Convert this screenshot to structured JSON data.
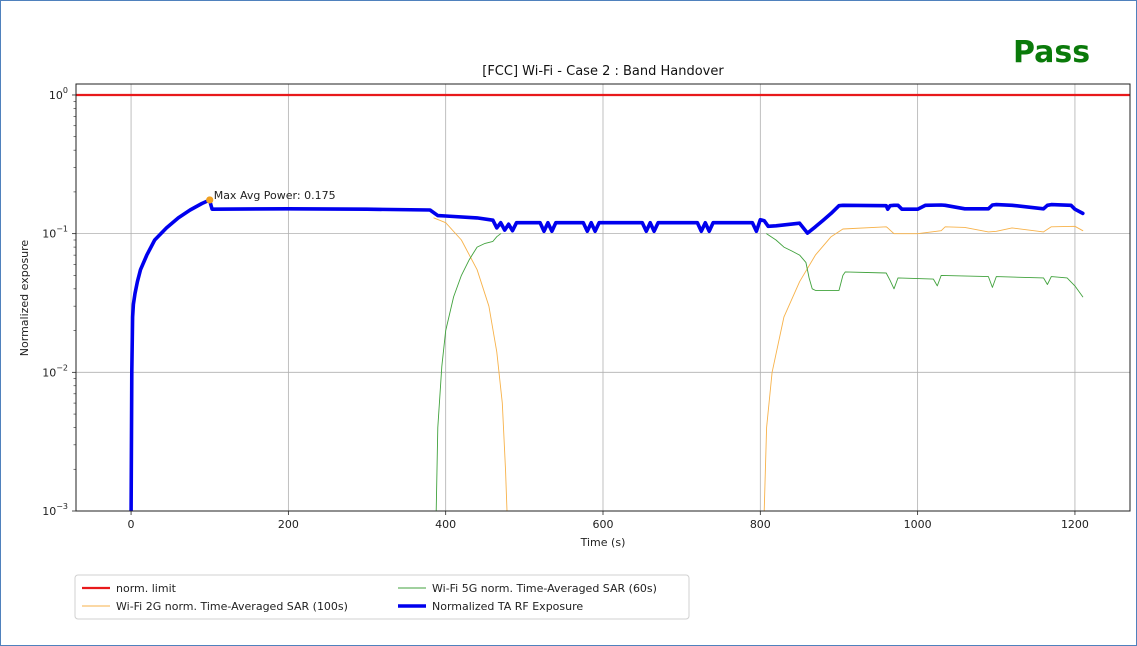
{
  "verdict": {
    "text": "Pass",
    "color": "#0a7a0a"
  },
  "chart_data": {
    "type": "line",
    "title": "[FCC] Wi-Fi - Case 2 : Band Handover",
    "xlabel": "Time (s)",
    "ylabel": "Normalized exposure",
    "xlim": [
      -70,
      1270
    ],
    "ylim": [
      0.001,
      1.2
    ],
    "yscale": "log",
    "grid": true,
    "x_ticks": [
      0,
      200,
      400,
      600,
      800,
      1000,
      1200
    ],
    "x_tick_labels": [
      "0",
      "200",
      "400",
      "600",
      "800",
      "1000",
      "1200"
    ],
    "y_ticks": [
      0.001,
      0.01,
      0.1,
      1
    ],
    "y_tick_labels": [
      {
        "base": "10",
        "exp": "−3"
      },
      {
        "base": "10",
        "exp": "−2"
      },
      {
        "base": "10",
        "exp": "−1"
      },
      {
        "base": "10",
        "exp": "0"
      }
    ],
    "legend_position": "below plot, left",
    "annotation": {
      "text": "Max Avg Power: 0.175",
      "x": 100,
      "y": 0.175,
      "color": "#f0a020"
    },
    "series": [
      {
        "name": "norm. limit",
        "color": "#e8191b",
        "x": [
          -70,
          1270
        ],
        "y": [
          1.0,
          1.0
        ]
      },
      {
        "name": "Wi-Fi 2G norm. Time-Averaged SAR (100s)",
        "color": "#f7b24a",
        "x": [
          385,
          400,
          420,
          440,
          455,
          465,
          472,
          476,
          478,
          null,
          805,
          808,
          815,
          830,
          850,
          870,
          890,
          905,
          960,
          962,
          970,
          1000,
          1030,
          1035,
          1060,
          1090,
          1100,
          1120,
          1160,
          1170,
          1200,
          1210
        ],
        "y": [
          0.13,
          0.12,
          0.09,
          0.055,
          0.03,
          0.014,
          0.006,
          0.002,
          0.001,
          null,
          0.001,
          0.004,
          0.01,
          0.025,
          0.045,
          0.07,
          0.095,
          0.108,
          0.112,
          0.11,
          0.1,
          0.1,
          0.105,
          0.112,
          0.111,
          0.103,
          0.104,
          0.11,
          0.103,
          0.112,
          0.113,
          0.105
        ]
      },
      {
        "name": "Wi-Fi 5G norm. Time-Averaged SAR (60s)",
        "color": "#41a23d",
        "x": [
          388,
          390,
          395,
          400,
          410,
          420,
          430,
          440,
          450,
          460,
          465,
          470,
          null,
          808,
          820,
          830,
          840,
          850,
          858,
          862,
          866,
          870,
          880,
          900,
          905,
          908,
          960,
          965,
          970,
          975,
          1020,
          1025,
          1030,
          1090,
          1095,
          1100,
          1160,
          1165,
          1170,
          1190,
          1200,
          1210
        ],
        "y": [
          0.001,
          0.004,
          0.011,
          0.02,
          0.035,
          0.05,
          0.065,
          0.08,
          0.085,
          0.088,
          0.095,
          0.1,
          null,
          0.1,
          0.09,
          0.08,
          0.075,
          0.07,
          0.062,
          0.048,
          0.04,
          0.039,
          0.039,
          0.039,
          0.05,
          0.053,
          0.052,
          0.046,
          0.04,
          0.048,
          0.047,
          0.042,
          0.05,
          0.049,
          0.041,
          0.049,
          0.048,
          0.043,
          0.049,
          0.048,
          0.042,
          0.035
        ]
      },
      {
        "name": "Normalized TA RF Exposure",
        "color": "#0000ee",
        "x": [
          0,
          1,
          2,
          3,
          5,
          8,
          12,
          20,
          30,
          45,
          60,
          75,
          90,
          100,
          101,
          103,
          200,
          300,
          380,
          390,
          400,
          440,
          460,
          465,
          470,
          475,
          480,
          485,
          490,
          500,
          510,
          520,
          525,
          530,
          535,
          540,
          575,
          580,
          585,
          590,
          595,
          620,
          650,
          655,
          660,
          665,
          670,
          690,
          720,
          725,
          730,
          735,
          740,
          760,
          790,
          795,
          800,
          805,
          810,
          820,
          850,
          860,
          870,
          880,
          890,
          900,
          905,
          960,
          962,
          965,
          970,
          975,
          980,
          1000,
          1010,
          1030,
          1035,
          1060,
          1090,
          1095,
          1100,
          1120,
          1160,
          1165,
          1170,
          1195,
          1200,
          1210
        ],
        "y": [
          0.001,
          0.01,
          0.025,
          0.031,
          0.037,
          0.045,
          0.055,
          0.07,
          0.09,
          0.11,
          0.13,
          0.148,
          0.165,
          0.175,
          0.165,
          0.15,
          0.151,
          0.15,
          0.148,
          0.135,
          0.134,
          0.13,
          0.125,
          0.11,
          0.12,
          0.106,
          0.117,
          0.105,
          0.12,
          0.12,
          0.12,
          0.12,
          0.104,
          0.12,
          0.104,
          0.12,
          0.12,
          0.104,
          0.12,
          0.104,
          0.12,
          0.12,
          0.12,
          0.104,
          0.12,
          0.104,
          0.12,
          0.12,
          0.12,
          0.104,
          0.12,
          0.104,
          0.12,
          0.12,
          0.12,
          0.104,
          0.126,
          0.124,
          0.113,
          0.114,
          0.119,
          0.101,
          0.112,
          0.125,
          0.14,
          0.159,
          0.16,
          0.159,
          0.15,
          0.159,
          0.16,
          0.16,
          0.15,
          0.15,
          0.16,
          0.161,
          0.16,
          0.151,
          0.151,
          0.161,
          0.162,
          0.16,
          0.151,
          0.16,
          0.162,
          0.16,
          0.15,
          0.14
        ]
      }
    ]
  }
}
